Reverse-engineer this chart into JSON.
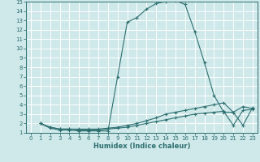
{
  "xlabel": "Humidex (Indice chaleur)",
  "xlim": [
    -0.5,
    23.5
  ],
  "ylim": [
    1,
    15
  ],
  "xticks": [
    0,
    1,
    2,
    3,
    4,
    5,
    6,
    7,
    8,
    9,
    10,
    11,
    12,
    13,
    14,
    15,
    16,
    17,
    18,
    19,
    20,
    21,
    22,
    23
  ],
  "yticks": [
    1,
    2,
    3,
    4,
    5,
    6,
    7,
    8,
    9,
    10,
    11,
    12,
    13,
    14,
    15
  ],
  "bg_color": "#cfe8ea",
  "grid_color": "#ffffff",
  "line_color": "#2e7070",
  "line1_x": [
    1,
    2,
    3,
    4,
    5,
    6,
    7,
    8,
    9,
    10,
    11,
    12,
    13,
    14,
    15,
    16,
    17,
    18,
    19,
    20,
    21,
    22,
    23
  ],
  "line1_y": [
    2.0,
    1.5,
    1.3,
    1.3,
    1.2,
    1.2,
    1.2,
    1.2,
    7.0,
    12.8,
    13.3,
    14.2,
    14.8,
    15.0,
    15.1,
    14.7,
    11.8,
    8.5,
    5.0,
    3.2,
    3.2,
    1.8,
    3.7
  ],
  "line2_x": [
    1,
    2,
    3,
    4,
    5,
    6,
    7,
    8,
    9,
    10,
    11,
    12,
    13,
    14,
    15,
    16,
    17,
    18,
    19,
    20,
    21,
    22,
    23
  ],
  "line2_y": [
    2.0,
    1.6,
    1.4,
    1.4,
    1.4,
    1.4,
    1.4,
    1.5,
    1.6,
    1.8,
    2.0,
    2.3,
    2.6,
    3.0,
    3.2,
    3.4,
    3.6,
    3.8,
    4.0,
    4.2,
    3.2,
    3.8,
    3.6
  ],
  "line3_x": [
    1,
    2,
    3,
    4,
    5,
    6,
    7,
    8,
    9,
    10,
    11,
    12,
    13,
    14,
    15,
    16,
    17,
    18,
    19,
    20,
    21,
    22,
    23
  ],
  "line3_y": [
    2.0,
    1.6,
    1.4,
    1.4,
    1.3,
    1.3,
    1.3,
    1.4,
    1.5,
    1.6,
    1.8,
    2.0,
    2.2,
    2.4,
    2.6,
    2.8,
    3.0,
    3.1,
    3.2,
    3.3,
    1.8,
    3.4,
    3.5
  ]
}
